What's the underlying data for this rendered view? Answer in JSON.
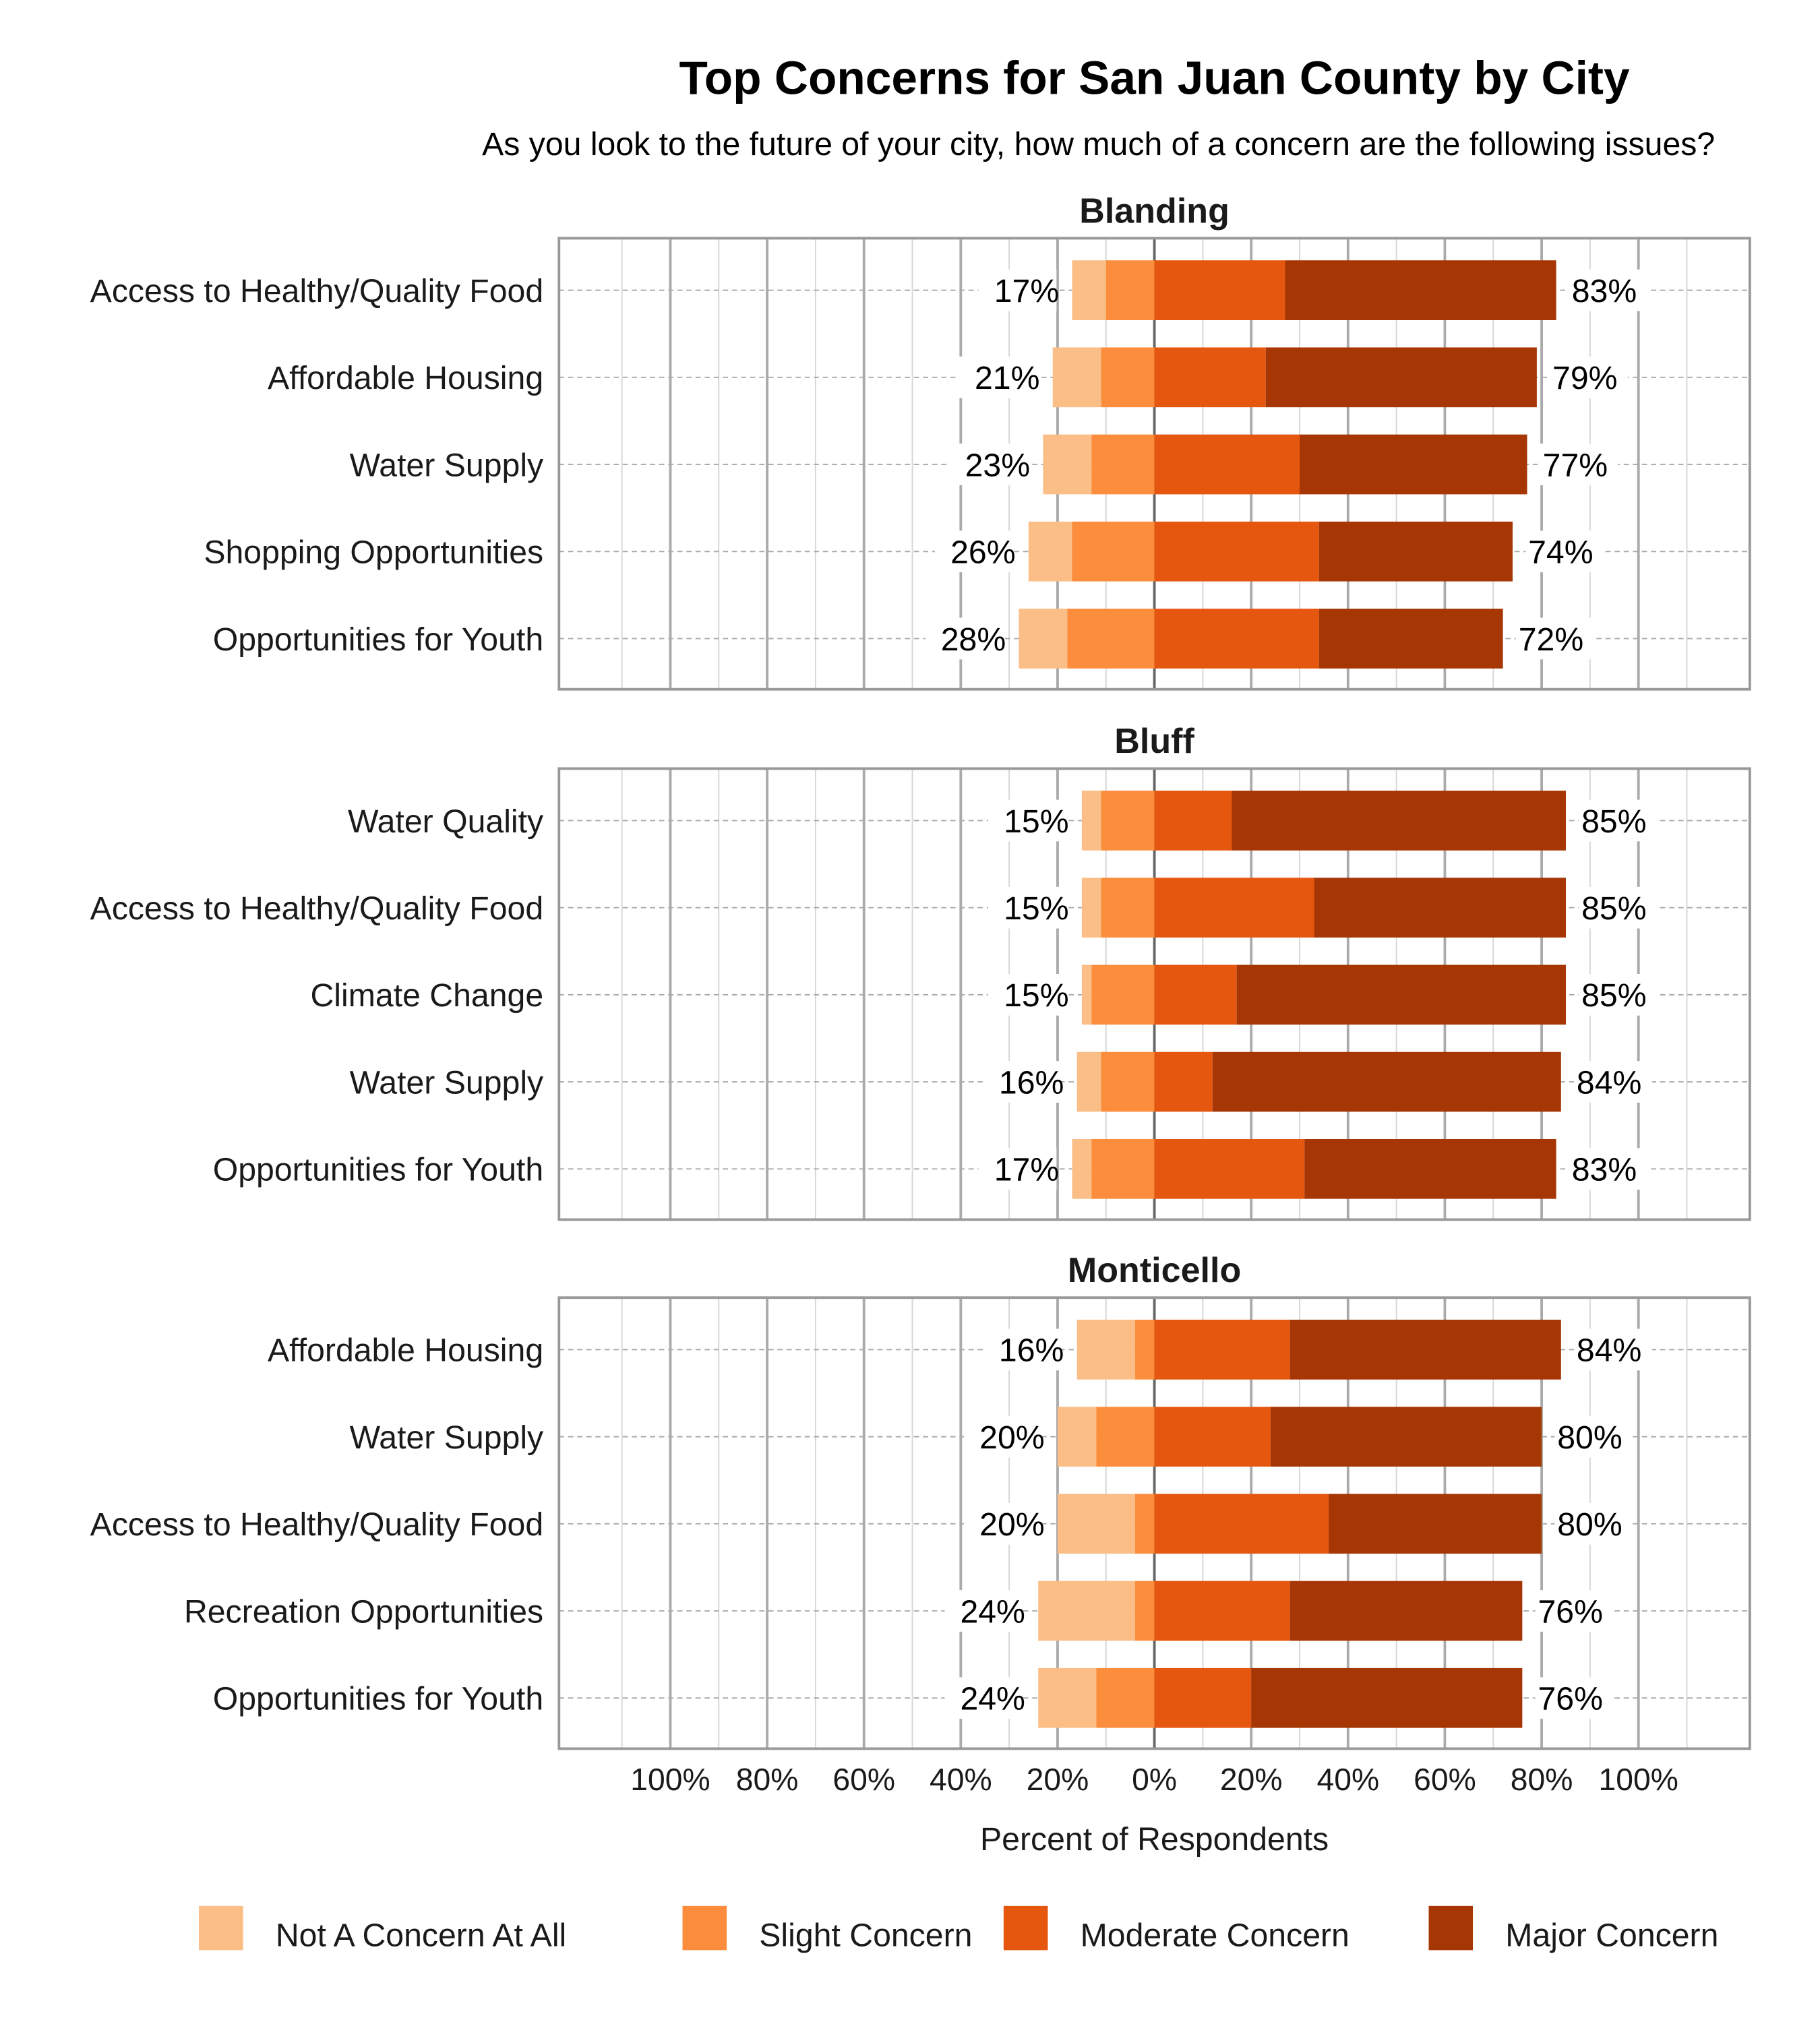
{
  "chart_data": {
    "type": "bar",
    "orientation": "horizontal",
    "stacked": "diverging",
    "title": "Top Concerns for San Juan County by City",
    "subtitle": "As you look to the future of your city, how much of a concern are the following issues?",
    "xlabel": "Percent of Respondents",
    "xlim": [
      -123,
      123
    ],
    "x_ticks": [
      -100,
      -80,
      -60,
      -40,
      -20,
      0,
      20,
      40,
      60,
      80,
      100
    ],
    "x_tick_labels": [
      "100%",
      "80%",
      "60%",
      "40%",
      "20%",
      "0%",
      "20%",
      "40%",
      "60%",
      "80%",
      "100%"
    ],
    "grid": true,
    "legend_position": "bottom",
    "series": [
      {
        "name": "Not A Concern At All",
        "color": "#FBBE86"
      },
      {
        "name": "Slight Concern",
        "color": "#FB8D3D"
      },
      {
        "name": "Moderate Concern",
        "color": "#E5560F"
      },
      {
        "name": "Major Concern",
        "color": "#A63603"
      }
    ],
    "panels": [
      {
        "title": "Blanding",
        "rows": [
          {
            "label": "Access to Healthy/Quality Food",
            "values": [
              7,
              10,
              27,
              56
            ],
            "left_label": "17%",
            "right_label": "83%"
          },
          {
            "label": "Affordable Housing",
            "values": [
              10,
              11,
              23,
              56
            ],
            "left_label": "21%",
            "right_label": "79%"
          },
          {
            "label": "Water Supply",
            "values": [
              10,
              13,
              30,
              47
            ],
            "left_label": "23%",
            "right_label": "77%"
          },
          {
            "label": "Shopping Opportunities",
            "values": [
              9,
              17,
              34,
              40
            ],
            "left_label": "26%",
            "right_label": "74%"
          },
          {
            "label": "Opportunities for Youth",
            "values": [
              10,
              18,
              34,
              38
            ],
            "left_label": "28%",
            "right_label": "72%"
          }
        ]
      },
      {
        "title": "Bluff",
        "rows": [
          {
            "label": "Water Quality",
            "values": [
              4,
              11,
              16,
              69
            ],
            "left_label": "15%",
            "right_label": "85%"
          },
          {
            "label": "Access to Healthy/Quality Food",
            "values": [
              4,
              11,
              33,
              52
            ],
            "left_label": "15%",
            "right_label": "85%"
          },
          {
            "label": "Climate Change",
            "values": [
              2,
              13,
              17,
              68
            ],
            "left_label": "15%",
            "right_label": "85%"
          },
          {
            "label": "Water Supply",
            "values": [
              5,
              11,
              12,
              72
            ],
            "left_label": "16%",
            "right_label": "84%"
          },
          {
            "label": "Opportunities for Youth",
            "values": [
              4,
              13,
              31,
              52
            ],
            "left_label": "17%",
            "right_label": "83%"
          }
        ]
      },
      {
        "title": "Monticello",
        "rows": [
          {
            "label": "Affordable Housing",
            "values": [
              12,
              4,
              28,
              56
            ],
            "left_label": "16%",
            "right_label": "84%"
          },
          {
            "label": "Water Supply",
            "values": [
              8,
              12,
              24,
              56
            ],
            "left_label": "20%",
            "right_label": "80%"
          },
          {
            "label": "Access to Healthy/Quality Food",
            "values": [
              16,
              4,
              36,
              44
            ],
            "left_label": "20%",
            "right_label": "80%"
          },
          {
            "label": "Recreation Opportunities",
            "values": [
              20,
              4,
              28,
              48
            ],
            "left_label": "24%",
            "right_label": "76%"
          },
          {
            "label": "Opportunities for Youth",
            "values": [
              12,
              12,
              20,
              56
            ],
            "left_label": "24%",
            "right_label": "76%"
          }
        ]
      }
    ]
  }
}
